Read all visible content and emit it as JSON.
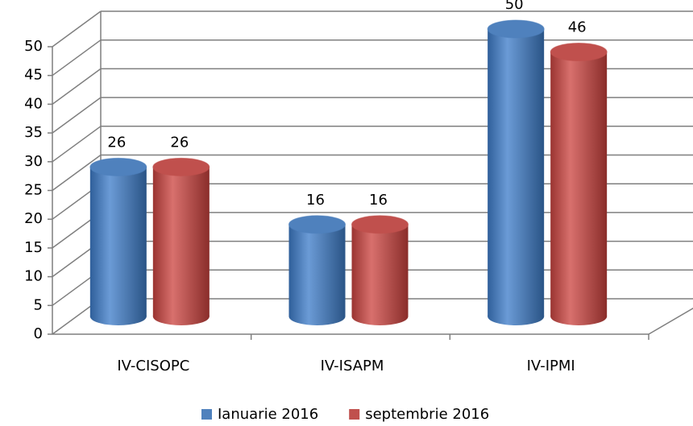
{
  "chart_data": {
    "type": "bar3d",
    "categories": [
      "IV-CISOPC",
      "IV-ISAPM",
      "IV-IPMI"
    ],
    "series": [
      {
        "name": "Ianuarie 2016",
        "color": "#4f81bd",
        "values": [
          26,
          16,
          50
        ]
      },
      {
        "name": "septembrie 2016",
        "color": "#c0504d",
        "values": [
          26,
          16,
          46
        ]
      }
    ],
    "ylim": [
      0,
      50
    ],
    "yticks": [
      0,
      5,
      10,
      15,
      20,
      25,
      30,
      35,
      40,
      45,
      50
    ],
    "grid": true,
    "legend": "bottom"
  }
}
